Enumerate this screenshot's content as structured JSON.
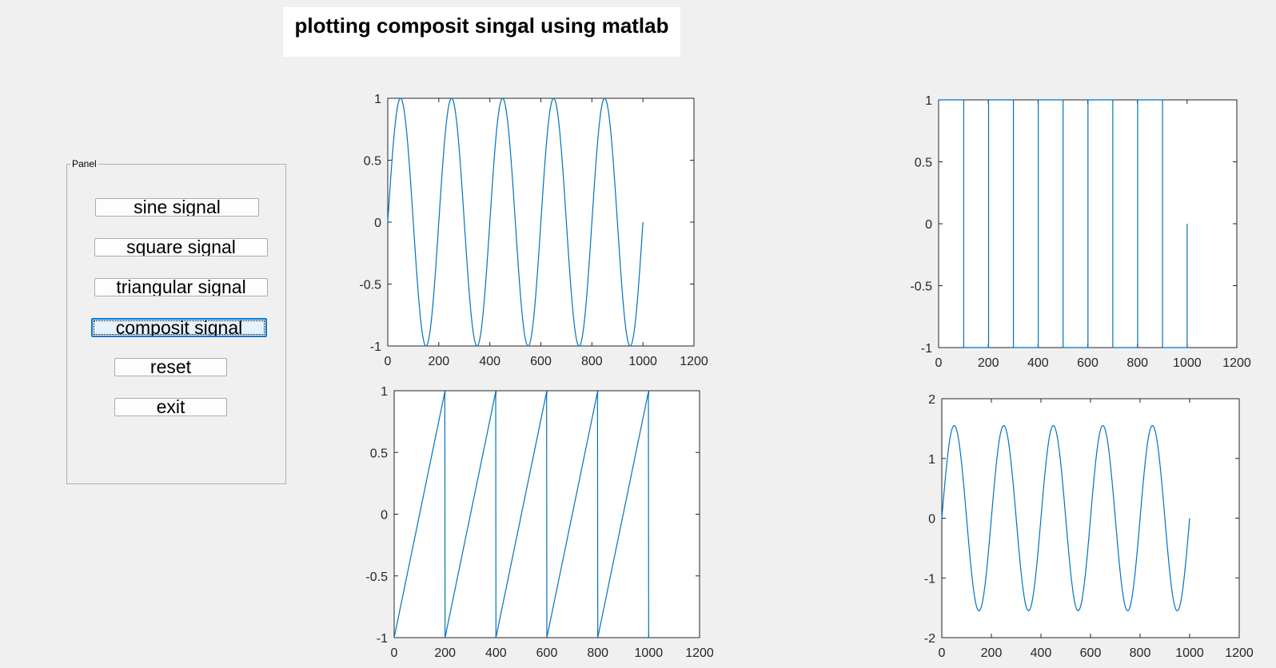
{
  "title": "plotting composit singal using matlab",
  "panel": {
    "legend": "Panel",
    "buttons": [
      {
        "label": "sine signal"
      },
      {
        "label": "square signal"
      },
      {
        "label": "triangular signal"
      },
      {
        "label": "composit signal"
      },
      {
        "label": "reset"
      },
      {
        "label": "exit"
      }
    ]
  },
  "colors": {
    "line": "#0072bd",
    "axes_bg": "#ffffff",
    "figure_bg": "#f0f0f0",
    "focus": "#0078d7"
  },
  "chart_data": [
    {
      "type": "line",
      "xlim": [
        0,
        1200
      ],
      "ylim": [
        -1,
        1
      ],
      "xticks": [
        0,
        200,
        400,
        600,
        800,
        1000,
        1200
      ],
      "yticks": [
        -1,
        -0.5,
        0,
        0.5,
        1
      ],
      "series": [
        {
          "function": "sin(2*pi*n/200)",
          "x_range": [
            0,
            1000
          ]
        }
      ]
    },
    {
      "type": "line",
      "xlim": [
        0,
        1200
      ],
      "ylim": [
        -1,
        1
      ],
      "xticks": [
        0,
        200,
        400,
        600,
        800,
        1000,
        1200
      ],
      "yticks": [
        -1,
        -0.5,
        0,
        0.5,
        1
      ],
      "series": [
        {
          "function": "square(2*pi*n/200)",
          "x_range": [
            0,
            1000
          ]
        }
      ]
    },
    {
      "type": "line",
      "xlim": [
        0,
        1200
      ],
      "ylim": [
        -1,
        1
      ],
      "xticks": [
        0,
        200,
        400,
        600,
        800,
        1000,
        1200
      ],
      "yticks": [
        -1,
        -0.5,
        0,
        0.5,
        1
      ],
      "series": [
        {
          "function": "sawtooth(2*pi*n/200)",
          "x_range": [
            0,
            1000
          ]
        }
      ]
    },
    {
      "type": "line",
      "xlim": [
        0,
        1200
      ],
      "ylim": [
        -2,
        2
      ],
      "xticks": [
        0,
        200,
        400,
        600,
        800,
        1000,
        1200
      ],
      "yticks": [
        -2,
        -1,
        0,
        1,
        2
      ],
      "series": [
        {
          "function": "sin(2*pi*n/200) + sin(2*pi*n/200)*(1-|square(2*pi*n/200)|)+0.5*sin(2*pi*n/200)",
          "x_range": [
            0,
            1000
          ]
        }
      ]
    }
  ]
}
